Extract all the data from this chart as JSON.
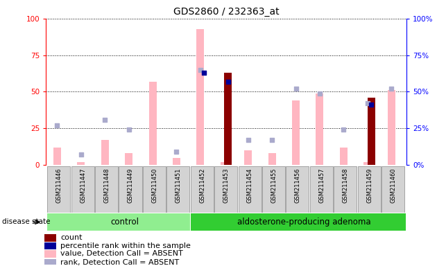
{
  "title": "GDS2860 / 232363_at",
  "samples": [
    "GSM211446",
    "GSM211447",
    "GSM211448",
    "GSM211449",
    "GSM211450",
    "GSM211451",
    "GSM211452",
    "GSM211453",
    "GSM211454",
    "GSM211455",
    "GSM211456",
    "GSM211457",
    "GSM211458",
    "GSM211459",
    "GSM211460"
  ],
  "control_count": 6,
  "value_absent": [
    12,
    2,
    17,
    8,
    57,
    5,
    93,
    2,
    10,
    8,
    44,
    49,
    12,
    2,
    51
  ],
  "rank_absent": [
    27,
    7,
    31,
    24,
    null,
    9,
    65,
    null,
    17,
    17,
    52,
    49,
    24,
    42,
    52
  ],
  "count": [
    0,
    0,
    0,
    0,
    0,
    0,
    0,
    63,
    0,
    0,
    0,
    0,
    0,
    46,
    0
  ],
  "percentile_rank": [
    0,
    0,
    0,
    0,
    0,
    0,
    63,
    57,
    0,
    0,
    0,
    0,
    0,
    41,
    0
  ],
  "ylim": [
    0,
    100
  ],
  "bar_color_value": "#FFB6C1",
  "bar_color_count": "#8B0000",
  "dot_color_rank": "#AAAACC",
  "dot_color_percentile": "#000099",
  "bg_color": "#D3D3D3",
  "control_color": "#90EE90",
  "adenoma_color": "#32CD32",
  "legend_items": [
    {
      "label": "count",
      "color": "#8B0000",
      "type": "rect"
    },
    {
      "label": "percentile rank within the sample",
      "color": "#000099",
      "type": "rect"
    },
    {
      "label": "value, Detection Call = ABSENT",
      "color": "#FFB6C1",
      "type": "rect"
    },
    {
      "label": "rank, Detection Call = ABSENT",
      "color": "#AAAACC",
      "type": "rect"
    }
  ]
}
